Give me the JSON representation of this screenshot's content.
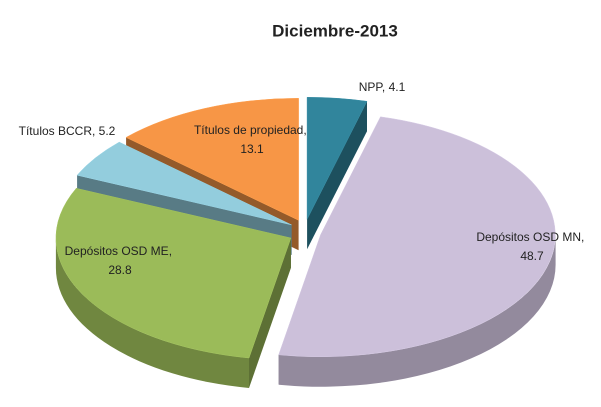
{
  "chart_data": {
    "type": "pie",
    "title": "Diciembre-2013",
    "categories": [
      "NPP",
      "Depósitos OSD MN",
      "Depósitos OSD ME",
      "Títulos BCCR",
      "Títulos de propiedad"
    ],
    "values": [
      4.1,
      48.7,
      28.8,
      5.2,
      13.1
    ],
    "colors": [
      "#31859c",
      "#ccc0da",
      "#9bbb59",
      "#93cddd",
      "#f79646"
    ],
    "label_separator": ", "
  }
}
